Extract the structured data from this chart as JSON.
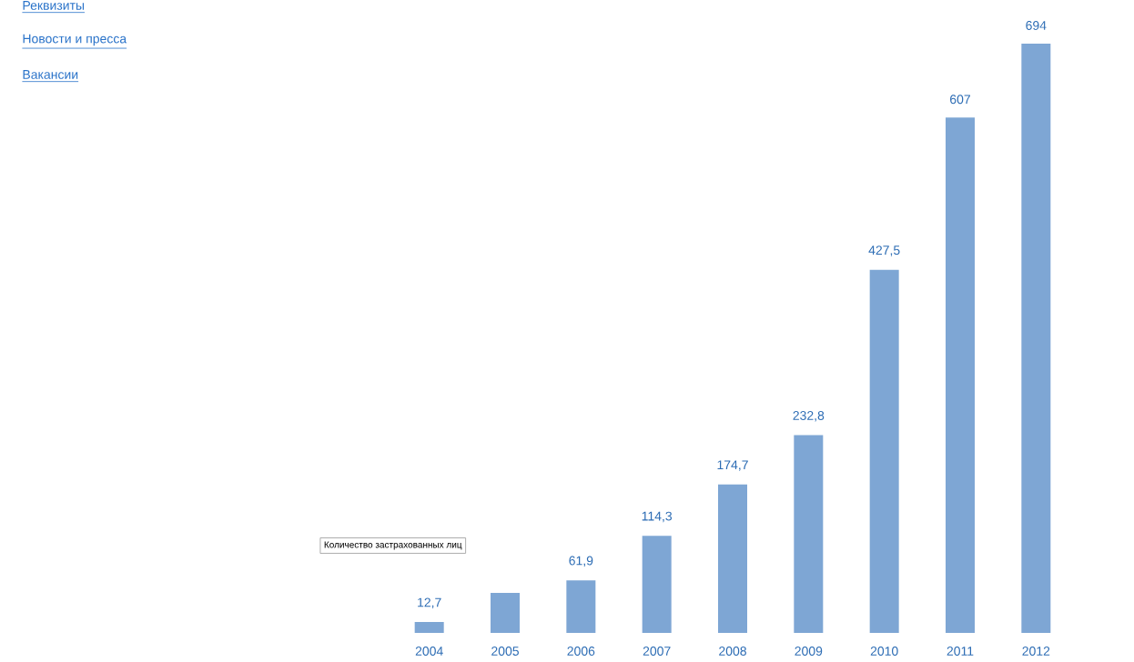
{
  "chart_data": {
    "type": "bar",
    "categories": [
      "2004",
      "2005",
      "2006",
      "2007",
      "2008",
      "2009",
      "2010",
      "2011",
      "2012"
    ],
    "values": [
      12.7,
      47,
      61.9,
      114.3,
      174.7,
      232.8,
      427.5,
      607,
      694
    ],
    "value_labels": [
      "12,7",
      null,
      "61,9",
      "114,3",
      "174,7",
      "232,8",
      "427,5",
      "607",
      "694"
    ],
    "color": "#7ea6d4",
    "ylim": [
      0,
      694
    ],
    "tick_labels": "x",
    "annotations": [
      "Реквизиты",
      "Новости и пресса",
      "Вакансии",
      "Количество застрахованных лиц"
    ]
  }
}
